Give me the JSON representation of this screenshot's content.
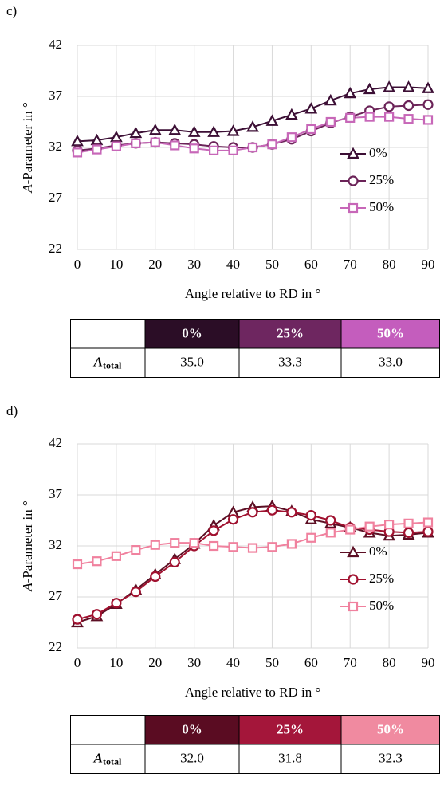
{
  "panel_labels": [
    "c)",
    "d)"
  ],
  "chart_data": [
    {
      "type": "line",
      "ylabel_italic": "A",
      "ylabel": "-Parameter in °",
      "xlabel": "Angle  relative  to RD in °",
      "x": [
        0,
        5,
        10,
        15,
        20,
        25,
        30,
        35,
        40,
        45,
        50,
        55,
        60,
        65,
        70,
        75,
        80,
        85,
        90
      ],
      "xlim": [
        0,
        90
      ],
      "xticks": [
        0,
        10,
        20,
        30,
        40,
        50,
        60,
        70,
        80,
        90
      ],
      "ylim": [
        22,
        42
      ],
      "yticks": [
        22,
        27,
        32,
        37,
        42
      ],
      "grid": true,
      "legend": "lower right",
      "series": [
        {
          "name": "0%",
          "color": "#3c0f35",
          "marker": "triangle",
          "values": [
            32.6,
            32.7,
            33.0,
            33.4,
            33.7,
            33.7,
            33.5,
            33.5,
            33.6,
            34.0,
            34.6,
            35.2,
            35.8,
            36.6,
            37.3,
            37.7,
            37.9,
            37.9,
            37.8
          ]
        },
        {
          "name": "25%",
          "color": "#6b2358",
          "marker": "circle",
          "values": [
            31.7,
            31.9,
            32.2,
            32.4,
            32.5,
            32.4,
            32.3,
            32.1,
            32.0,
            32.0,
            32.3,
            32.8,
            33.6,
            34.4,
            35.0,
            35.6,
            36.0,
            36.1,
            36.2
          ]
        },
        {
          "name": "50%",
          "color": "#c767b8",
          "marker": "square",
          "values": [
            31.5,
            31.8,
            32.1,
            32.4,
            32.5,
            32.2,
            31.9,
            31.7,
            31.7,
            32.0,
            32.3,
            33.0,
            33.8,
            34.5,
            34.9,
            35.0,
            35.0,
            34.8,
            34.7
          ]
        }
      ]
    },
    {
      "type": "line",
      "ylabel_italic": "A",
      "ylabel": "-Parameter in °",
      "xlabel": "Angle  relative  to RD in °",
      "x": [
        0,
        5,
        10,
        15,
        20,
        25,
        30,
        35,
        40,
        45,
        50,
        55,
        60,
        65,
        70,
        75,
        80,
        85,
        90
      ],
      "xlim": [
        0,
        90
      ],
      "xticks": [
        0,
        10,
        20,
        30,
        40,
        50,
        60,
        70,
        80,
        90
      ],
      "ylim": [
        22,
        42
      ],
      "yticks": [
        22,
        27,
        32,
        37,
        42
      ],
      "grid": true,
      "legend": "lower right",
      "series": [
        {
          "name": "0%",
          "color": "#5c0f24",
          "marker": "triangle",
          "values": [
            24.5,
            25.1,
            26.3,
            27.7,
            29.2,
            30.7,
            32.2,
            34.0,
            35.3,
            35.8,
            35.9,
            35.4,
            34.6,
            34.2,
            33.8,
            33.3,
            33.0,
            33.1,
            33.3
          ]
        },
        {
          "name": "25%",
          "color": "#a0112f",
          "marker": "circle",
          "values": [
            24.8,
            25.3,
            26.4,
            27.5,
            29.0,
            30.4,
            32.0,
            33.5,
            34.6,
            35.3,
            35.5,
            35.3,
            35.0,
            34.5,
            33.8,
            33.6,
            33.4,
            33.3,
            33.4
          ]
        },
        {
          "name": "50%",
          "color": "#f0819e",
          "marker": "square",
          "values": [
            30.2,
            30.5,
            31.0,
            31.6,
            32.1,
            32.3,
            32.3,
            32.0,
            31.9,
            31.8,
            31.9,
            32.2,
            32.8,
            33.3,
            33.6,
            33.9,
            34.1,
            34.2,
            34.3
          ]
        }
      ]
    }
  ],
  "tables": [
    {
      "header": [
        "0%",
        "25%",
        "50%"
      ],
      "header_colors": [
        "#2b0d26",
        "#6e2660",
        "#c45dbd"
      ],
      "row_label": "A",
      "row_label_sub": "total",
      "values": [
        "35.0",
        "33.3",
        "33.0"
      ]
    },
    {
      "header": [
        "0%",
        "25%",
        "50%"
      ],
      "header_colors": [
        "#5a0c22",
        "#a4163a",
        "#f08aa0"
      ],
      "row_label": "A",
      "row_label_sub": "total",
      "values": [
        "32.0",
        "31.8",
        "32.3"
      ]
    }
  ]
}
